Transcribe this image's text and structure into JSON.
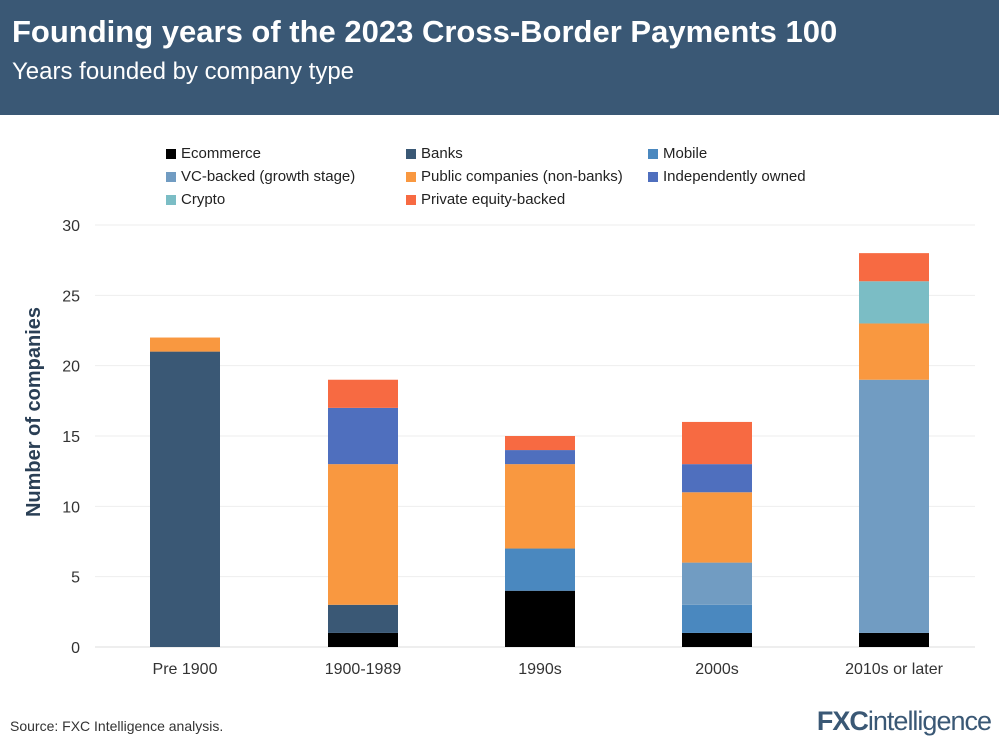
{
  "header": {
    "title": "Founding years of the 2023 Cross-Border Payments 100",
    "subtitle": "Years founded by company type"
  },
  "footer": {
    "source": "Source: FXC Intelligence analysis.",
    "logo": "FXCintelligence"
  },
  "chart_data": {
    "type": "bar",
    "stacked": true,
    "title": "Founding years of the 2023 Cross-Border Payments 100",
    "subtitle": "Years founded by company type",
    "xlabel": "",
    "ylabel": "Number of companies",
    "ylim": [
      0,
      30
    ],
    "yticks": [
      0,
      5,
      10,
      15,
      20,
      25,
      30
    ],
    "grid": true,
    "legend_position": "top",
    "categories": [
      "Pre 1900",
      "1900-1989",
      "1990s",
      "2000s",
      "2010s or later"
    ],
    "series": [
      {
        "name": "Ecommerce",
        "color": "#000000",
        "values": [
          0,
          1,
          4,
          1,
          1
        ]
      },
      {
        "name": "Banks",
        "color": "#3a5875",
        "values": [
          21,
          2,
          0,
          0,
          0
        ]
      },
      {
        "name": "Mobile",
        "color": "#4a88bf",
        "values": [
          0,
          0,
          3,
          2,
          0
        ]
      },
      {
        "name": "VC-backed (growth stage)",
        "color": "#719cc2",
        "values": [
          0,
          0,
          0,
          3,
          18
        ]
      },
      {
        "name": "Public companies (non-banks)",
        "color": "#f99840",
        "values": [
          1,
          10,
          6,
          5,
          4
        ]
      },
      {
        "name": "Independently owned",
        "color": "#4f6fbe",
        "values": [
          0,
          4,
          1,
          2,
          0
        ]
      },
      {
        "name": "Crypto",
        "color": "#7bbdc5",
        "values": [
          0,
          0,
          0,
          0,
          3
        ]
      },
      {
        "name": "Private equity-backed",
        "color": "#f76a42",
        "values": [
          0,
          2,
          1,
          3,
          2
        ]
      }
    ]
  }
}
